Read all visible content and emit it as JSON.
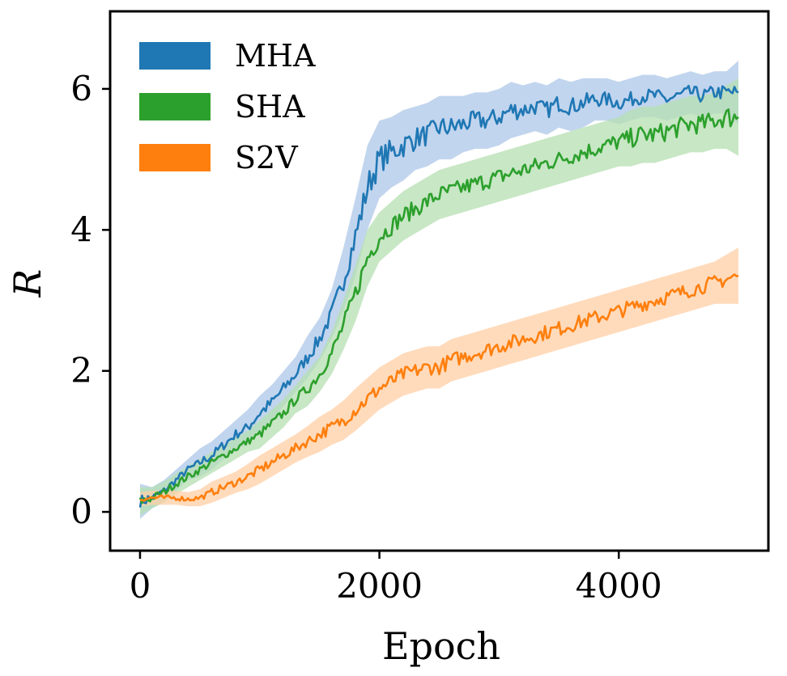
{
  "chart_data": {
    "type": "line",
    "xlabel": "Epoch",
    "ylabel": "R",
    "xlim": [
      -250,
      5250
    ],
    "ylim": [
      -0.55,
      7.1
    ],
    "xticks": [
      0,
      2000,
      4000
    ],
    "yticks": [
      0,
      2,
      4,
      6
    ],
    "xtick_labels": [
      "0",
      "2000",
      "4000"
    ],
    "ytick_labels": [
      "0",
      "2",
      "4",
      "6"
    ],
    "grid": false,
    "legend_position": "top-left",
    "shaded_band": "variability band around each mean curve",
    "series": [
      {
        "name": "MHA",
        "color": "#1f77b4",
        "band_color": "#aec7e8",
        "x": [
          0,
          100,
          200,
          300,
          400,
          500,
          600,
          700,
          800,
          900,
          1000,
          1100,
          1200,
          1300,
          1400,
          1500,
          1600,
          1700,
          1800,
          1900,
          2000,
          2100,
          2200,
          2300,
          2400,
          2500,
          2600,
          2700,
          2800,
          2900,
          3000,
          3100,
          3200,
          3300,
          3400,
          3500,
          3600,
          3700,
          3800,
          3900,
          4000,
          4100,
          4200,
          4300,
          4400,
          4500,
          4600,
          4700,
          4800,
          4900,
          5000
        ],
        "y": [
          0.15,
          0.2,
          0.3,
          0.45,
          0.6,
          0.7,
          0.8,
          0.95,
          1.1,
          1.2,
          1.4,
          1.55,
          1.75,
          1.95,
          2.2,
          2.45,
          2.8,
          3.3,
          3.9,
          4.6,
          5.0,
          5.1,
          5.2,
          5.3,
          5.35,
          5.45,
          5.45,
          5.5,
          5.55,
          5.55,
          5.6,
          5.7,
          5.7,
          5.75,
          5.7,
          5.8,
          5.75,
          5.8,
          5.85,
          5.85,
          5.8,
          5.85,
          5.9,
          5.9,
          5.85,
          5.9,
          5.95,
          5.9,
          5.95,
          5.95,
          5.95
        ],
        "band": [
          0.25,
          0.15,
          0.15,
          0.15,
          0.15,
          0.2,
          0.2,
          0.2,
          0.2,
          0.25,
          0.25,
          0.25,
          0.25,
          0.25,
          0.3,
          0.3,
          0.35,
          0.45,
          0.55,
          0.6,
          0.55,
          0.5,
          0.5,
          0.45,
          0.45,
          0.45,
          0.45,
          0.4,
          0.4,
          0.4,
          0.4,
          0.4,
          0.35,
          0.35,
          0.35,
          0.35,
          0.35,
          0.35,
          0.3,
          0.3,
          0.3,
          0.3,
          0.3,
          0.3,
          0.3,
          0.3,
          0.3,
          0.3,
          0.3,
          0.3,
          0.45
        ]
      },
      {
        "name": "SHA",
        "color": "#2ca02c",
        "band_color": "#b5dfb2",
        "x": [
          0,
          100,
          200,
          300,
          400,
          500,
          600,
          700,
          800,
          900,
          1000,
          1100,
          1200,
          1300,
          1400,
          1500,
          1600,
          1700,
          1800,
          1900,
          2000,
          2100,
          2200,
          2300,
          2400,
          2500,
          2600,
          2700,
          2800,
          2900,
          3000,
          3100,
          3200,
          3300,
          3400,
          3500,
          3600,
          3700,
          3800,
          3900,
          4000,
          4100,
          4200,
          4300,
          4400,
          4500,
          4600,
          4700,
          4800,
          4900,
          5000
        ],
        "y": [
          0.15,
          0.2,
          0.28,
          0.4,
          0.5,
          0.6,
          0.7,
          0.8,
          0.9,
          1.0,
          1.1,
          1.25,
          1.4,
          1.6,
          1.75,
          1.95,
          2.25,
          2.65,
          3.1,
          3.6,
          3.9,
          4.05,
          4.2,
          4.3,
          4.4,
          4.5,
          4.55,
          4.6,
          4.65,
          4.7,
          4.75,
          4.8,
          4.85,
          4.9,
          4.95,
          5.0,
          5.05,
          5.1,
          5.15,
          5.2,
          5.25,
          5.3,
          5.35,
          5.35,
          5.4,
          5.45,
          5.5,
          5.5,
          5.55,
          5.6,
          5.6
        ],
        "band": [
          0.2,
          0.15,
          0.15,
          0.15,
          0.15,
          0.15,
          0.15,
          0.15,
          0.15,
          0.15,
          0.2,
          0.2,
          0.2,
          0.2,
          0.25,
          0.25,
          0.3,
          0.35,
          0.4,
          0.4,
          0.35,
          0.35,
          0.35,
          0.35,
          0.35,
          0.35,
          0.35,
          0.35,
          0.35,
          0.35,
          0.35,
          0.35,
          0.35,
          0.35,
          0.35,
          0.35,
          0.35,
          0.35,
          0.35,
          0.35,
          0.35,
          0.4,
          0.4,
          0.4,
          0.4,
          0.4,
          0.4,
          0.4,
          0.4,
          0.45,
          0.55
        ]
      },
      {
        "name": "S2V",
        "color": "#ff7f0e",
        "band_color": "#ffcfa6",
        "x": [
          0,
          100,
          200,
          300,
          400,
          500,
          600,
          700,
          800,
          900,
          1000,
          1100,
          1200,
          1300,
          1400,
          1500,
          1600,
          1700,
          1800,
          1900,
          2000,
          2100,
          2200,
          2300,
          2400,
          2500,
          2600,
          2700,
          2800,
          2900,
          3000,
          3100,
          3200,
          3300,
          3400,
          3500,
          3600,
          3700,
          3800,
          3900,
          4000,
          4100,
          4200,
          4300,
          4400,
          4500,
          4600,
          4700,
          4800,
          4900,
          5000
        ],
        "y": [
          0.18,
          0.2,
          0.2,
          0.2,
          0.18,
          0.2,
          0.28,
          0.35,
          0.42,
          0.5,
          0.6,
          0.7,
          0.8,
          0.9,
          1.0,
          1.1,
          1.2,
          1.3,
          1.45,
          1.6,
          1.75,
          1.85,
          1.95,
          2.0,
          2.05,
          2.05,
          2.15,
          2.2,
          2.25,
          2.3,
          2.35,
          2.4,
          2.45,
          2.5,
          2.55,
          2.6,
          2.65,
          2.7,
          2.75,
          2.8,
          2.85,
          2.9,
          2.95,
          3.0,
          3.05,
          3.1,
          3.15,
          3.2,
          3.25,
          3.3,
          3.35
        ],
        "band": [
          0.1,
          0.1,
          0.1,
          0.1,
          0.1,
          0.12,
          0.15,
          0.15,
          0.15,
          0.18,
          0.2,
          0.2,
          0.2,
          0.2,
          0.22,
          0.25,
          0.25,
          0.28,
          0.3,
          0.3,
          0.3,
          0.3,
          0.3,
          0.3,
          0.3,
          0.3,
          0.3,
          0.3,
          0.3,
          0.3,
          0.3,
          0.3,
          0.3,
          0.3,
          0.3,
          0.3,
          0.3,
          0.3,
          0.3,
          0.3,
          0.3,
          0.3,
          0.3,
          0.3,
          0.3,
          0.3,
          0.3,
          0.3,
          0.3,
          0.35,
          0.4
        ]
      }
    ]
  }
}
